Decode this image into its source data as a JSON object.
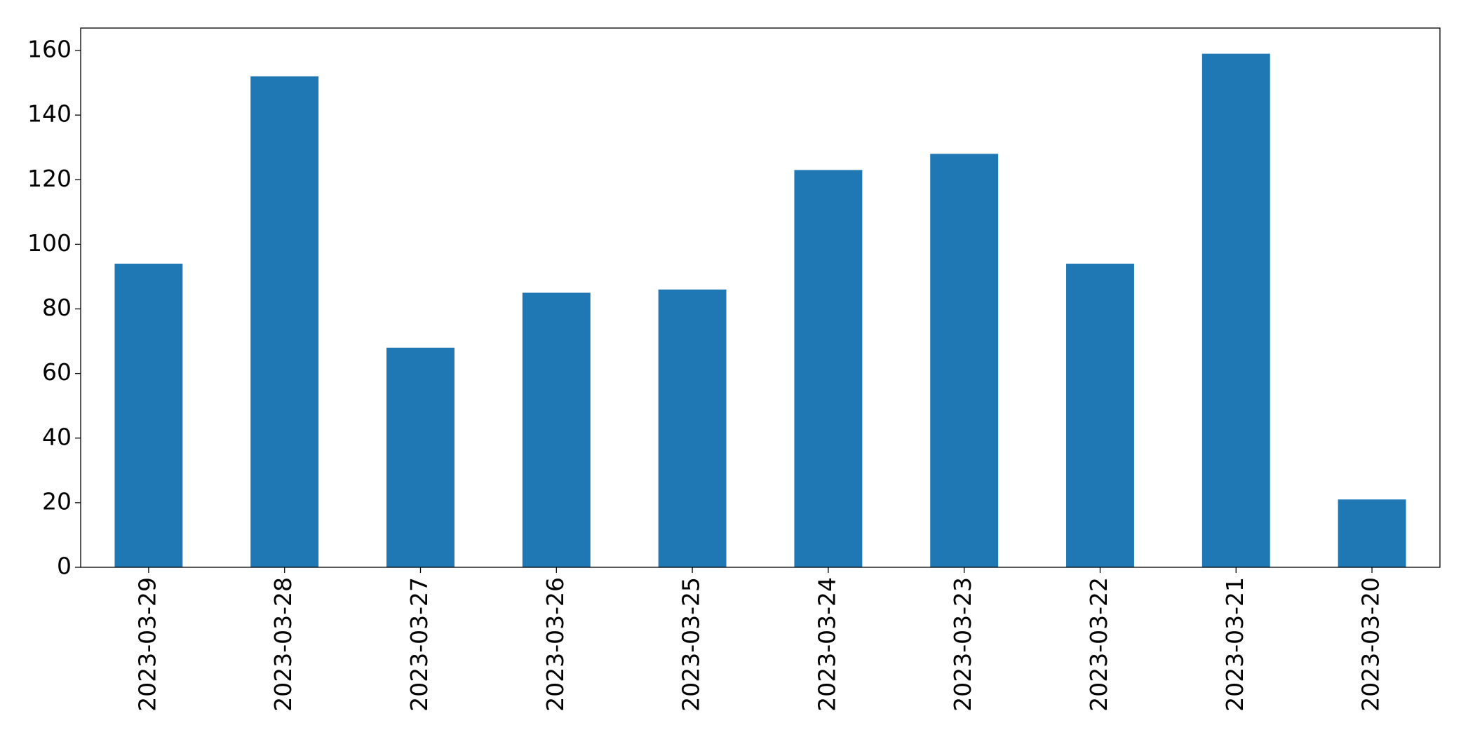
{
  "chart_data": {
    "type": "bar",
    "categories": [
      "2023-03-29",
      "2023-03-28",
      "2023-03-27",
      "2023-03-26",
      "2023-03-25",
      "2023-03-24",
      "2023-03-23",
      "2023-03-22",
      "2023-03-21",
      "2023-03-20"
    ],
    "values": [
      94,
      152,
      68,
      85,
      86,
      123,
      128,
      94,
      159,
      21
    ],
    "color": "#1f77b4",
    "ylim": [
      0,
      166.95
    ],
    "yticks": [
      0,
      20,
      40,
      60,
      80,
      100,
      120,
      140,
      160
    ],
    "grid": false
  }
}
